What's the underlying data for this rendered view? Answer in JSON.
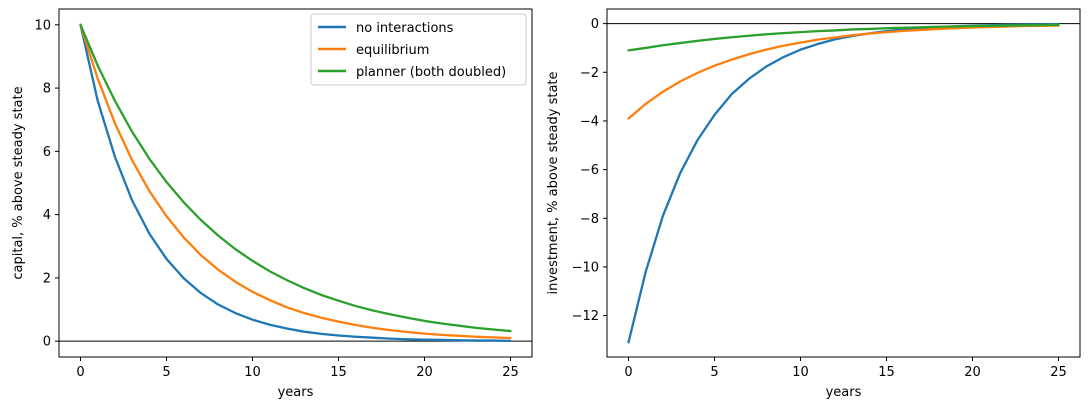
{
  "chart_data": [
    {
      "type": "line",
      "title": "",
      "xlabel": "years",
      "ylabel": "capital, % above steady state",
      "xlim": [
        -1.25,
        26.25
      ],
      "ylim": [
        -0.5,
        10.5
      ],
      "xticks": [
        0,
        5,
        10,
        15,
        20,
        25
      ],
      "yticks": [
        0,
        2,
        4,
        6,
        8,
        10
      ],
      "xtick_labels": [
        "0",
        "5",
        "10",
        "15",
        "20",
        "25"
      ],
      "ytick_labels": [
        "0",
        "2",
        "4",
        "6",
        "8",
        "10"
      ],
      "hline": 0,
      "grid": false,
      "legend": "top-right",
      "x": [
        0,
        1,
        2,
        3,
        4,
        5,
        6,
        7,
        8,
        9,
        10,
        11,
        12,
        13,
        14,
        15,
        16,
        17,
        18,
        19,
        20,
        21,
        22,
        23,
        24,
        25
      ],
      "series": [
        {
          "name": "no interactions",
          "color": "#1f77b4",
          "values": [
            10.0,
            7.6,
            5.83,
            4.45,
            3.4,
            2.6,
            1.99,
            1.52,
            1.16,
            0.89,
            0.68,
            0.52,
            0.4,
            0.3,
            0.23,
            0.18,
            0.14,
            0.11,
            0.08,
            0.06,
            0.05,
            0.04,
            0.03,
            0.02,
            0.02,
            0.01
          ]
        },
        {
          "name": "equilibrium",
          "color": "#ff7f0e",
          "values": [
            10.0,
            8.3,
            6.89,
            5.72,
            4.75,
            3.95,
            3.28,
            2.72,
            2.26,
            1.88,
            1.56,
            1.3,
            1.07,
            0.89,
            0.74,
            0.62,
            0.51,
            0.42,
            0.35,
            0.29,
            0.24,
            0.2,
            0.17,
            0.14,
            0.12,
            0.1
          ]
        },
        {
          "name": "planner (both doubled)",
          "color": "#2ca02c",
          "values": [
            10.0,
            8.71,
            7.6,
            6.62,
            5.77,
            5.03,
            4.39,
            3.83,
            3.34,
            2.91,
            2.54,
            2.21,
            1.93,
            1.68,
            1.46,
            1.28,
            1.11,
            0.97,
            0.85,
            0.74,
            0.64,
            0.56,
            0.49,
            0.42,
            0.37,
            0.32
          ]
        }
      ]
    },
    {
      "type": "line",
      "title": "",
      "xlabel": "years",
      "ylabel": "investment, % above steady state",
      "xlim": [
        -1.25,
        26.25
      ],
      "ylim": [
        -13.7,
        0.6
      ],
      "xticks": [
        0,
        5,
        10,
        15,
        20,
        25
      ],
      "yticks": [
        0,
        -2,
        -4,
        -6,
        -8,
        -10,
        -12
      ],
      "xtick_labels": [
        "0",
        "5",
        "10",
        "15",
        "20",
        "25"
      ],
      "ytick_labels": [
        "0",
        "−2",
        "−4",
        "−6",
        "−8",
        "−10",
        "−12"
      ],
      "hline": 0,
      "grid": false,
      "x": [
        0,
        1,
        2,
        3,
        4,
        5,
        6,
        7,
        8,
        9,
        10,
        11,
        12,
        13,
        14,
        15,
        16,
        17,
        18,
        19,
        20,
        21,
        22,
        23,
        24,
        25
      ],
      "series": [
        {
          "name": "no interactions",
          "color": "#1f77b4",
          "values": [
            -13.1,
            -10.2,
            -7.9,
            -6.15,
            -4.8,
            -3.75,
            -2.9,
            -2.27,
            -1.77,
            -1.38,
            -1.07,
            -0.84,
            -0.65,
            -0.51,
            -0.4,
            -0.31,
            -0.24,
            -0.19,
            -0.15,
            -0.11,
            -0.09,
            -0.07,
            -0.05,
            -0.04,
            -0.03,
            -0.02
          ]
        },
        {
          "name": "equilibrium",
          "color": "#ff7f0e",
          "values": [
            -3.9,
            -3.3,
            -2.8,
            -2.38,
            -2.03,
            -1.73,
            -1.48,
            -1.26,
            -1.07,
            -0.91,
            -0.78,
            -0.66,
            -0.57,
            -0.48,
            -0.41,
            -0.35,
            -0.3,
            -0.26,
            -0.22,
            -0.19,
            -0.16,
            -0.14,
            -0.12,
            -0.1,
            -0.09,
            -0.08
          ]
        },
        {
          "name": "planner (both doubled)",
          "color": "#2ca02c",
          "values": [
            -1.1,
            -1.0,
            -0.89,
            -0.8,
            -0.71,
            -0.63,
            -0.56,
            -0.5,
            -0.44,
            -0.39,
            -0.35,
            -0.31,
            -0.28,
            -0.24,
            -0.22,
            -0.19,
            -0.17,
            -0.15,
            -0.13,
            -0.12,
            -0.1,
            -0.09,
            -0.08,
            -0.07,
            -0.06,
            -0.05
          ]
        }
      ]
    }
  ]
}
